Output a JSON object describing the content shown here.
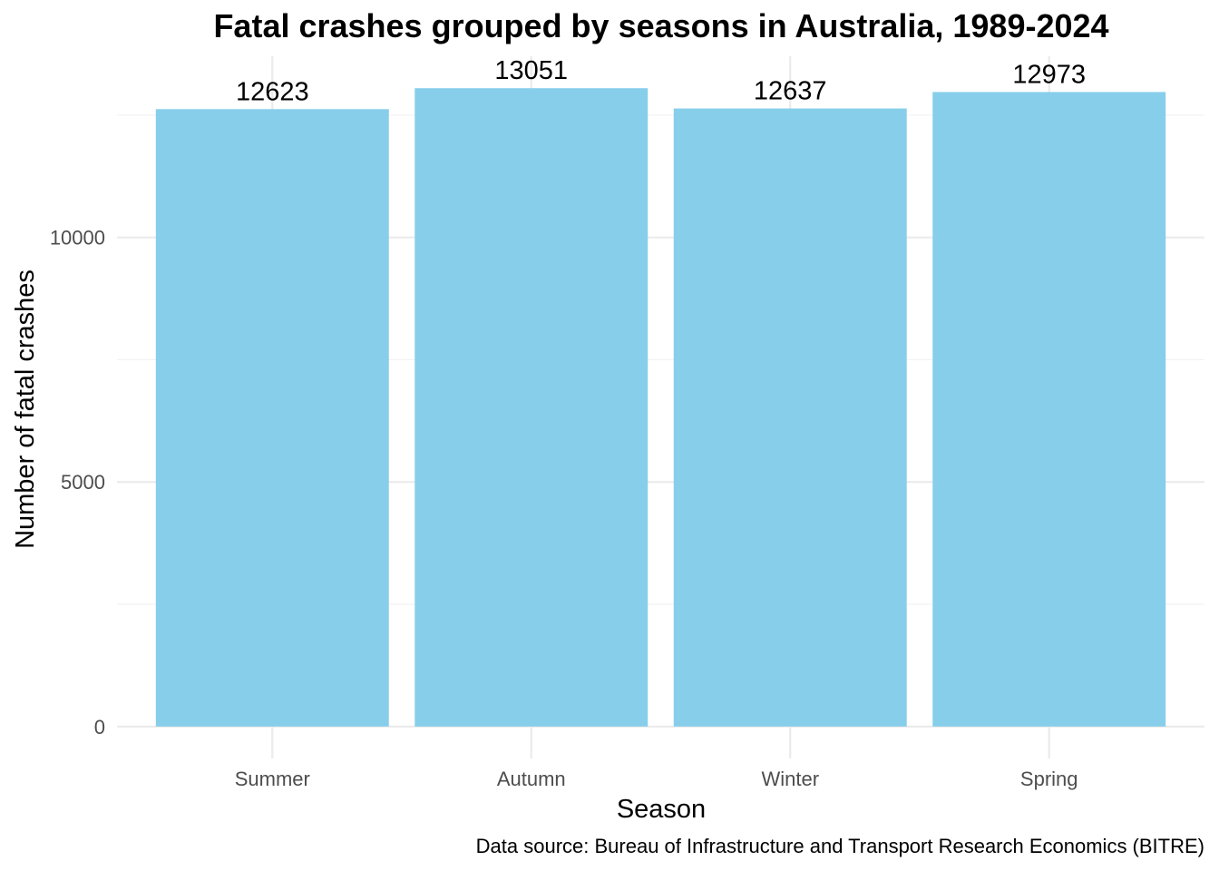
{
  "chart_data": {
    "type": "bar",
    "title": "Fatal crashes grouped by seasons in Australia, 1989-2024",
    "xlabel": "Season",
    "ylabel": "Number of fatal crashes",
    "caption": "Data source: Bureau of Infrastructure and Transport Research Economics (BITRE)",
    "categories": [
      "Summer",
      "Autumn",
      "Winter",
      "Spring"
    ],
    "values": [
      12623,
      13051,
      12637,
      12973
    ],
    "data_labels": [
      "12623",
      "13051",
      "12637",
      "12973"
    ],
    "yticks": [
      0,
      5000,
      10000
    ],
    "ytick_labels": [
      "0",
      "5000",
      "10000"
    ],
    "yminor_ticks": [
      2500,
      7500,
      12500
    ],
    "ylim": [
      -653,
      13704
    ],
    "grid": true,
    "bar_color": "#87CEEB"
  }
}
